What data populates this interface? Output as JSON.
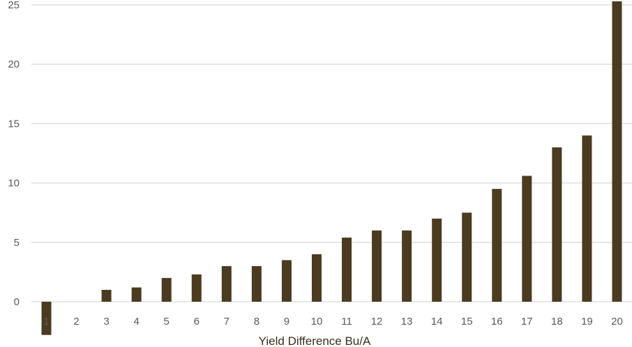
{
  "chart_data": {
    "type": "bar",
    "categories": [
      "1",
      "2",
      "3",
      "4",
      "5",
      "6",
      "7",
      "8",
      "9",
      "10",
      "11",
      "12",
      "13",
      "14",
      "15",
      "16",
      "17",
      "18",
      "19",
      "20"
    ],
    "values": [
      -2.8,
      0,
      1,
      1.2,
      2,
      2.3,
      3,
      3,
      3.5,
      4,
      5.4,
      6,
      6,
      7,
      7.5,
      9.5,
      10.6,
      13,
      14,
      25.3
    ],
    "title": "",
    "xlabel": "Yield Difference Bu/A",
    "ylabel": "",
    "ylim": [
      -3,
      25
    ],
    "yticks": [
      0,
      5,
      10,
      15,
      20,
      25
    ],
    "grid": true,
    "colors": {
      "bar": "#4a3b21",
      "grid": "#d9d9d9",
      "tick": "#595959",
      "axis_title": "#3a2e1c"
    }
  }
}
